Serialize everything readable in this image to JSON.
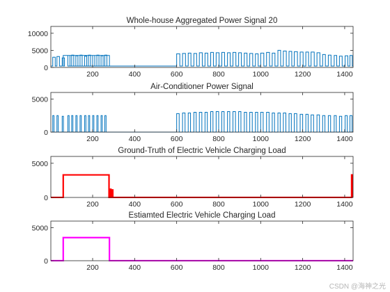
{
  "watermark": "CSDN @海神之光",
  "chart_data": [
    {
      "type": "line",
      "title": "Whole-house Aggregated Power Signal 20",
      "xlim": [
        1,
        1440
      ],
      "ylim": [
        0,
        12000
      ],
      "xticks": [
        200,
        400,
        600,
        800,
        1000,
        1200,
        1400
      ],
      "yticks": [
        0,
        5000,
        10000
      ],
      "color": "#0072BD",
      "line_width": 1,
      "series": [
        {
          "base": 400,
          "blocks": [
            [
              60,
              280,
              3500
            ]
          ],
          "pulses": [
            [
              10,
              22,
              3000
            ],
            [
              30,
              42,
              3200
            ],
            [
              55,
              66,
              2800
            ],
            [
              82,
              92,
              3500
            ],
            [
              100,
              110,
              3600
            ],
            [
              120,
              130,
              3400
            ],
            [
              140,
              150,
              3600
            ],
            [
              162,
              172,
              3300
            ],
            [
              180,
              190,
              3600
            ],
            [
              200,
              210,
              3500
            ],
            [
              220,
              230,
              3600
            ],
            [
              240,
              250,
              3400
            ],
            [
              258,
              268,
              3600
            ],
            [
              600,
              615,
              4000
            ],
            [
              628,
              642,
              4100
            ],
            [
              655,
              668,
              4200
            ],
            [
              682,
              695,
              4100
            ],
            [
              708,
              722,
              4300
            ],
            [
              735,
              748,
              4200
            ],
            [
              762,
              775,
              4400
            ],
            [
              788,
              802,
              4300
            ],
            [
              815,
              828,
              4400
            ],
            [
              842,
              855,
              4300
            ],
            [
              868,
              882,
              4400
            ],
            [
              895,
              908,
              4300
            ],
            [
              922,
              935,
              4200
            ],
            [
              948,
              962,
              4100
            ],
            [
              975,
              988,
              4000
            ],
            [
              1000,
              1015,
              4200
            ],
            [
              1028,
              1042,
              4400
            ],
            [
              1055,
              1068,
              4200
            ],
            [
              1082,
              1095,
              5000
            ],
            [
              1108,
              1122,
              4800
            ],
            [
              1135,
              1148,
              4700
            ],
            [
              1160,
              1175,
              4600
            ],
            [
              1188,
              1202,
              4500
            ],
            [
              1215,
              1228,
              4500
            ],
            [
              1240,
              1255,
              4500
            ],
            [
              1268,
              1282,
              4300
            ],
            [
              1295,
              1308,
              3800
            ],
            [
              1322,
              1335,
              3600
            ],
            [
              1350,
              1362,
              3500
            ],
            [
              1375,
              1388,
              3300
            ],
            [
              1402,
              1415,
              3400
            ],
            [
              1425,
              1436,
              3500
            ]
          ]
        }
      ]
    },
    {
      "type": "line",
      "title": "Air-Conditioner Power Signal",
      "xlim": [
        1,
        1440
      ],
      "ylim": [
        0,
        6000
      ],
      "xticks": [
        200,
        400,
        600,
        800,
        1000,
        1200,
        1400
      ],
      "yticks": [
        0,
        5000
      ],
      "color": "#0072BD",
      "line_width": 1,
      "series": [
        {
          "base": 0,
          "blocks": [],
          "pulses": [
            [
              10,
              16,
              2500
            ],
            [
              30,
              36,
              2500
            ],
            [
              55,
              61,
              2400
            ],
            [
              82,
              88,
              2500
            ],
            [
              100,
              106,
              2500
            ],
            [
              120,
              126,
              2500
            ],
            [
              140,
              146,
              2500
            ],
            [
              162,
              168,
              2500
            ],
            [
              180,
              186,
              2500
            ],
            [
              200,
              206,
              2500
            ],
            [
              220,
              226,
              2500
            ],
            [
              240,
              246,
              2500
            ],
            [
              258,
              264,
              2500
            ],
            [
              600,
              612,
              2800
            ],
            [
              628,
              640,
              2900
            ],
            [
              655,
              666,
              2900
            ],
            [
              682,
              693,
              3000
            ],
            [
              708,
              720,
              3000
            ],
            [
              735,
              746,
              3000
            ],
            [
              762,
              773,
              3100
            ],
            [
              788,
              800,
              3100
            ],
            [
              815,
              826,
              3100
            ],
            [
              842,
              853,
              3100
            ],
            [
              868,
              880,
              3100
            ],
            [
              895,
              906,
              3100
            ],
            [
              922,
              933,
              3000
            ],
            [
              948,
              960,
              3000
            ],
            [
              975,
              986,
              3000
            ],
            [
              1000,
              1012,
              3000
            ],
            [
              1028,
              1040,
              3000
            ],
            [
              1055,
              1066,
              2900
            ],
            [
              1082,
              1093,
              2900
            ],
            [
              1108,
              1120,
              2900
            ],
            [
              1135,
              1146,
              2800
            ],
            [
              1160,
              1172,
              2800
            ],
            [
              1188,
              1200,
              2700
            ],
            [
              1215,
              1226,
              2700
            ],
            [
              1240,
              1252,
              2600
            ],
            [
              1268,
              1280,
              2600
            ],
            [
              1295,
              1306,
              2500
            ],
            [
              1322,
              1333,
              2500
            ],
            [
              1350,
              1360,
              2500
            ],
            [
              1375,
              1386,
              2400
            ],
            [
              1402,
              1412,
              2500
            ],
            [
              1425,
              1435,
              2500
            ]
          ]
        }
      ]
    },
    {
      "type": "line",
      "title": "Ground-Truth of Electric Vehicle Charging Load",
      "xlim": [
        1,
        1440
      ],
      "ylim": [
        0,
        6000
      ],
      "xticks": [
        200,
        400,
        600,
        800,
        1000,
        1200,
        1400
      ],
      "yticks": [
        0,
        5000
      ],
      "color": "#FF0000",
      "line_width": 2.2,
      "series": [
        {
          "base": 0,
          "blocks": [
            [
              60,
              278,
              3300
            ]
          ],
          "pulses": [
            [
              283,
              287,
              1200
            ],
            [
              292,
              296,
              1100
            ],
            [
              1433,
              1440,
              3300
            ]
          ]
        }
      ]
    },
    {
      "type": "line",
      "title": "Estiamted Electric Vehicle Charging Load",
      "xlim": [
        1,
        1440
      ],
      "ylim": [
        0,
        6000
      ],
      "xticks": [
        200,
        400,
        600,
        800,
        1000,
        1200,
        1400
      ],
      "yticks": [
        0,
        5000
      ],
      "color": "#FF00FF",
      "line_width": 2.2,
      "series": [
        {
          "base": 0,
          "blocks": [
            [
              60,
              280,
              3500
            ]
          ],
          "pulses": []
        }
      ]
    }
  ]
}
